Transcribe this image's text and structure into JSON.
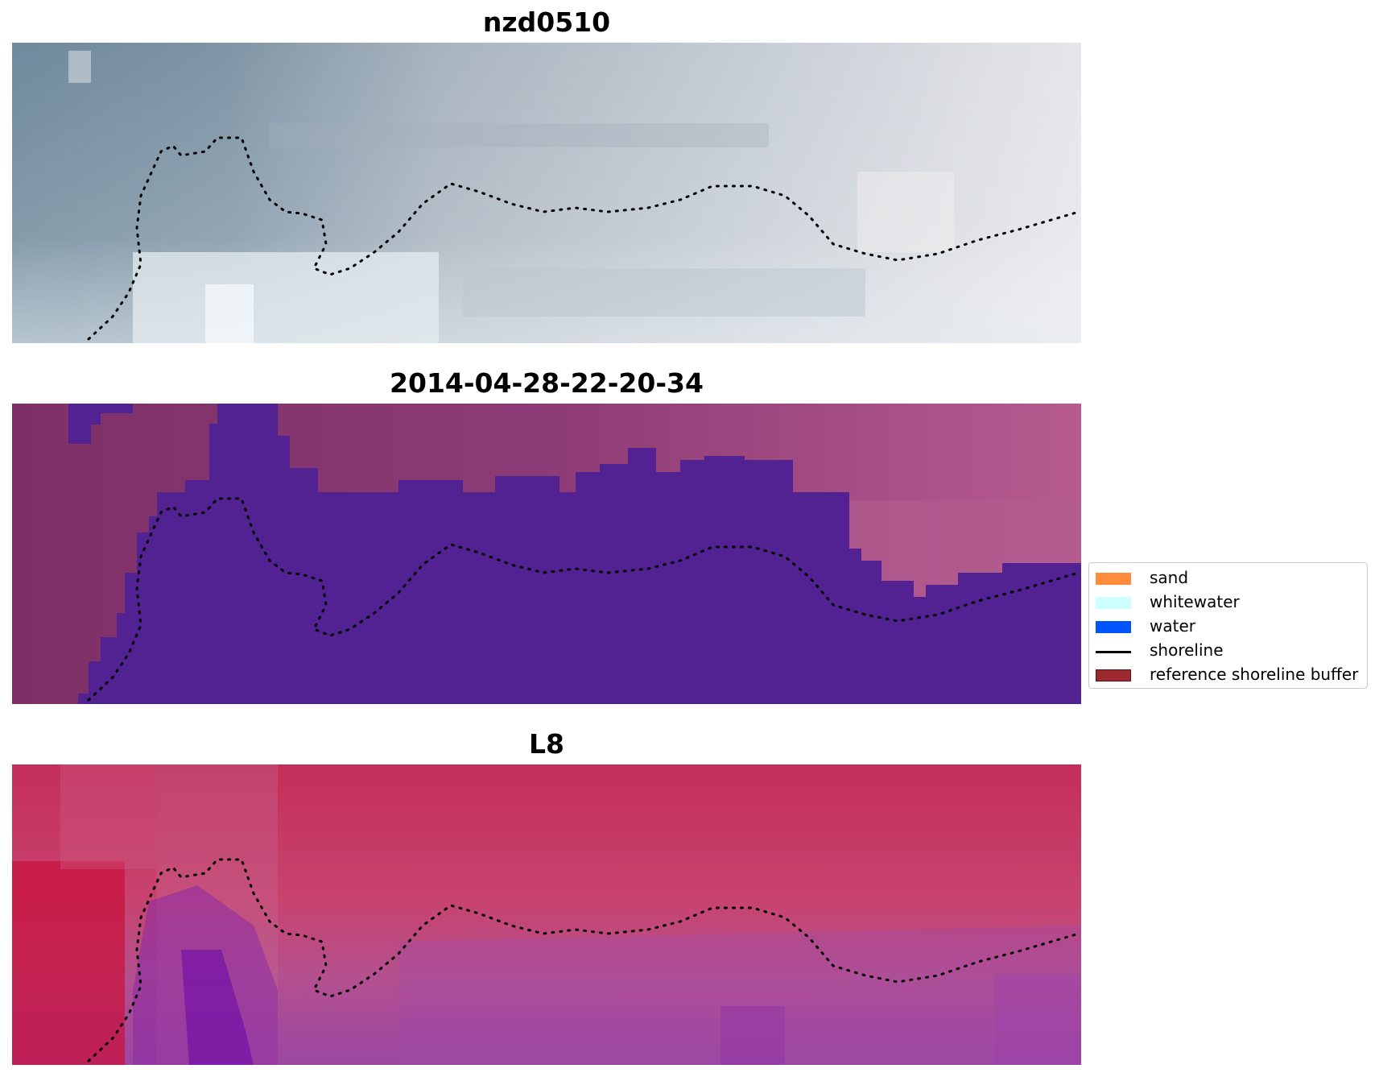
{
  "panels": [
    {
      "title": "nzd0510",
      "image": "rgb-satellite-image"
    },
    {
      "title": "2014-04-28-22-20-34",
      "image": "classified-image"
    },
    {
      "title": "L8",
      "image": "mndwi-image"
    }
  ],
  "legend": {
    "items": [
      {
        "label": "sand",
        "color": "#ff8c3c",
        "kind": "patch"
      },
      {
        "label": "whitewater",
        "color": "#ccffff",
        "kind": "patch"
      },
      {
        "label": "water",
        "color": "#0055ff",
        "kind": "patch"
      },
      {
        "label": "shoreline",
        "color": "#000000",
        "kind": "line"
      },
      {
        "label": "reference shoreline buffer",
        "color": "#9c2a2e",
        "kind": "patch"
      }
    ]
  },
  "colors": {
    "water_overlay": "#522293",
    "land_overlay": "#8a3a74",
    "shoreline": "#000000"
  }
}
